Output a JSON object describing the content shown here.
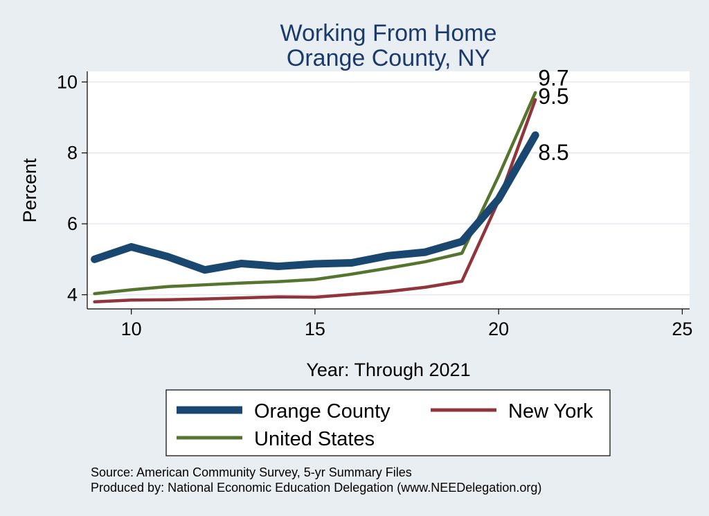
{
  "chart_data": {
    "type": "line",
    "title": [
      "Working From Home",
      "Orange County, NY"
    ],
    "xlabel": "Year: Through 2021",
    "ylabel": "Percent",
    "xlim": [
      8.8,
      25.2
    ],
    "ylim": [
      3.6,
      10.3
    ],
    "xticks": [
      10,
      15,
      20,
      25
    ],
    "yticks": [
      4,
      6,
      8,
      10
    ],
    "grid": true,
    "legend_position": "bottom",
    "x": [
      9,
      10,
      11,
      12,
      13,
      14,
      15,
      16,
      17,
      18,
      19,
      20,
      21
    ],
    "series": [
      {
        "name": "Orange County",
        "color": "#1a476f",
        "values": [
          5.0,
          5.35,
          5.07,
          4.7,
          4.88,
          4.8,
          4.87,
          4.9,
          5.1,
          5.2,
          5.5,
          6.7,
          8.5
        ],
        "end_label": "8.5"
      },
      {
        "name": "New York",
        "color": "#90353b",
        "values": [
          3.8,
          3.85,
          3.86,
          3.88,
          3.91,
          3.94,
          3.93,
          4.01,
          4.09,
          4.21,
          4.38,
          6.65,
          9.5
        ],
        "end_label": "9.5"
      },
      {
        "name": "United States",
        "color": "#55752f",
        "values": [
          4.03,
          4.14,
          4.23,
          4.28,
          4.33,
          4.37,
          4.43,
          4.58,
          4.75,
          4.93,
          5.17,
          7.35,
          9.7
        ],
        "end_label": "9.7"
      }
    ],
    "notes": [
      "Source: American Community Survey, 5-yr Summary Files",
      "Produced by: National Economic Education Delegation (www.NEEDelegation.org)"
    ]
  }
}
